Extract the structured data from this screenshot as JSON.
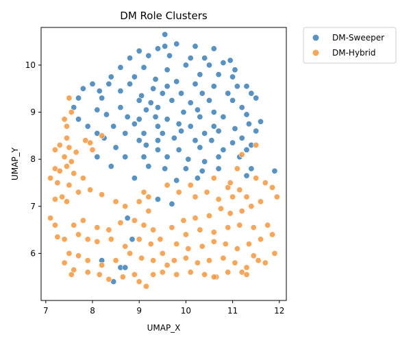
{
  "chart_data": {
    "type": "scatter",
    "title": "DM Role Clusters",
    "xlabel": "UMAP_X",
    "ylabel": "UMAP_Y",
    "xlim": [
      6.9,
      12.15
    ],
    "ylim": [
      5.0,
      10.8
    ],
    "x_ticks": [
      7,
      8,
      9,
      10,
      11,
      12
    ],
    "y_ticks": [
      6,
      7,
      8,
      9,
      10
    ],
    "grid": false,
    "legend": "outside-top-right",
    "series": [
      {
        "name": "DM-Sweeper",
        "color": "#3b7fb8",
        "points": [
          [
            9.55,
            10.65
          ],
          [
            9.55,
            10.4
          ],
          [
            9.8,
            10.45
          ],
          [
            9.0,
            10.3
          ],
          [
            9.4,
            10.35
          ],
          [
            10.2,
            10.4
          ],
          [
            10.6,
            10.35
          ],
          [
            8.8,
            10.15
          ],
          [
            9.2,
            10.2
          ],
          [
            9.65,
            10.2
          ],
          [
            10.1,
            10.15
          ],
          [
            10.4,
            10.15
          ],
          [
            10.95,
            10.1
          ],
          [
            8.6,
            9.95
          ],
          [
            9.1,
            9.95
          ],
          [
            9.6,
            9.9
          ],
          [
            10.0,
            10.0
          ],
          [
            10.5,
            10.0
          ],
          [
            10.8,
            10.05
          ],
          [
            11.05,
            9.9
          ],
          [
            8.4,
            9.75
          ],
          [
            8.9,
            9.75
          ],
          [
            9.35,
            9.7
          ],
          [
            9.8,
            9.65
          ],
          [
            10.3,
            9.8
          ],
          [
            10.7,
            9.8
          ],
          [
            11.0,
            9.75
          ],
          [
            8.0,
            9.6
          ],
          [
            8.35,
            9.6
          ],
          [
            8.8,
            9.6
          ],
          [
            9.3,
            9.5
          ],
          [
            9.6,
            9.55
          ],
          [
            10.2,
            9.6
          ],
          [
            10.6,
            9.55
          ],
          [
            11.1,
            9.55
          ],
          [
            11.3,
            9.55
          ],
          [
            7.8,
            9.5
          ],
          [
            8.15,
            9.45
          ],
          [
            8.6,
            9.45
          ],
          [
            9.05,
            9.35
          ],
          [
            9.5,
            9.4
          ],
          [
            9.9,
            9.4
          ],
          [
            10.35,
            9.4
          ],
          [
            10.9,
            9.4
          ],
          [
            11.4,
            9.4
          ],
          [
            7.7,
            9.3
          ],
          [
            8.2,
            9.3
          ],
          [
            9.0,
            9.25
          ],
          [
            9.25,
            9.2
          ],
          [
            9.7,
            9.25
          ],
          [
            10.1,
            9.2
          ],
          [
            10.5,
            9.25
          ],
          [
            11.0,
            9.25
          ],
          [
            11.5,
            9.3
          ],
          [
            7.6,
            9.1
          ],
          [
            8.1,
            9.05
          ],
          [
            8.6,
            9.1
          ],
          [
            9.15,
            9.05
          ],
          [
            9.4,
            9.1
          ],
          [
            9.95,
            9.0
          ],
          [
            10.25,
            9.05
          ],
          [
            10.6,
            9.0
          ],
          [
            11.2,
            9.1
          ],
          [
            7.7,
            8.85
          ],
          [
            8.3,
            8.95
          ],
          [
            8.75,
            8.9
          ],
          [
            9.0,
            8.85
          ],
          [
            9.35,
            8.9
          ],
          [
            9.6,
            8.85
          ],
          [
            10.3,
            8.9
          ],
          [
            10.8,
            8.9
          ],
          [
            11.3,
            8.95
          ],
          [
            11.6,
            8.8
          ],
          [
            7.9,
            8.7
          ],
          [
            8.45,
            8.7
          ],
          [
            8.9,
            8.75
          ],
          [
            9.4,
            8.7
          ],
          [
            9.85,
            8.75
          ],
          [
            10.1,
            8.7
          ],
          [
            10.6,
            8.7
          ],
          [
            11.05,
            8.65
          ],
          [
            11.35,
            8.75
          ],
          [
            8.1,
            8.55
          ],
          [
            8.7,
            8.55
          ],
          [
            9.1,
            8.55
          ],
          [
            9.5,
            8.55
          ],
          [
            9.9,
            8.6
          ],
          [
            10.4,
            8.55
          ],
          [
            10.7,
            8.6
          ],
          [
            11.2,
            8.45
          ],
          [
            11.5,
            8.6
          ],
          [
            8.25,
            8.45
          ],
          [
            9.0,
            8.4
          ],
          [
            9.4,
            8.4
          ],
          [
            9.75,
            8.45
          ],
          [
            10.2,
            8.4
          ],
          [
            10.55,
            8.4
          ],
          [
            11.0,
            8.35
          ],
          [
            11.4,
            8.3
          ],
          [
            8.5,
            8.25
          ],
          [
            9.15,
            8.3
          ],
          [
            9.4,
            8.2
          ],
          [
            9.85,
            8.2
          ],
          [
            10.3,
            8.25
          ],
          [
            10.8,
            8.2
          ],
          [
            11.3,
            8.2
          ],
          [
            8.1,
            8.05
          ],
          [
            8.7,
            8.05
          ],
          [
            9.1,
            8.05
          ],
          [
            9.6,
            8.05
          ],
          [
            10.05,
            8.0
          ],
          [
            10.4,
            7.95
          ],
          [
            10.7,
            8.05
          ],
          [
            11.15,
            8.05
          ],
          [
            8.4,
            7.85
          ],
          [
            9.2,
            7.85
          ],
          [
            9.55,
            7.8
          ],
          [
            10.0,
            7.8
          ],
          [
            10.35,
            7.75
          ],
          [
            10.7,
            7.8
          ],
          [
            11.4,
            7.8
          ],
          [
            11.9,
            7.75
          ],
          [
            8.9,
            7.6
          ],
          [
            9.8,
            7.55
          ],
          [
            10.25,
            7.6
          ],
          [
            11.3,
            7.65
          ],
          [
            9.4,
            7.15
          ],
          [
            9.7,
            7.05
          ],
          [
            8.75,
            6.75
          ],
          [
            8.85,
            6.3
          ],
          [
            8.2,
            5.85
          ],
          [
            8.6,
            5.7
          ],
          [
            8.45,
            5.4
          ],
          [
            8.7,
            5.7
          ]
        ]
      },
      {
        "name": "DM-Hybrid",
        "color": "#f7963c",
        "points": [
          [
            7.5,
            9.3
          ],
          [
            7.55,
            9.0
          ],
          [
            7.4,
            8.85
          ],
          [
            7.45,
            8.7
          ],
          [
            7.45,
            8.45
          ],
          [
            7.3,
            8.3
          ],
          [
            7.5,
            8.25
          ],
          [
            7.2,
            8.2
          ],
          [
            7.65,
            8.15
          ],
          [
            7.85,
            8.4
          ],
          [
            7.4,
            8.05
          ],
          [
            7.55,
            7.95
          ],
          [
            7.2,
            7.8
          ],
          [
            7.45,
            7.85
          ],
          [
            7.3,
            7.75
          ],
          [
            7.6,
            7.7
          ],
          [
            7.8,
            7.6
          ],
          [
            7.1,
            7.6
          ],
          [
            7.25,
            7.5
          ],
          [
            7.5,
            7.45
          ],
          [
            7.35,
            7.2
          ],
          [
            7.2,
            7.15
          ],
          [
            7.45,
            7.1
          ],
          [
            7.7,
            7.3
          ],
          [
            7.95,
            7.35
          ],
          [
            8.2,
            7.25
          ],
          [
            8.5,
            7.1
          ],
          [
            8.7,
            7.0
          ],
          [
            9.0,
            7.1
          ],
          [
            9.2,
            7.2
          ],
          [
            7.1,
            6.75
          ],
          [
            7.2,
            6.6
          ],
          [
            7.6,
            6.6
          ],
          [
            7.8,
            6.7
          ],
          [
            8.1,
            6.55
          ],
          [
            8.35,
            6.5
          ],
          [
            8.6,
            6.65
          ],
          [
            8.9,
            6.7
          ],
          [
            9.1,
            6.6
          ],
          [
            9.3,
            6.5
          ],
          [
            7.25,
            6.35
          ],
          [
            7.4,
            6.3
          ],
          [
            7.7,
            6.4
          ],
          [
            7.9,
            6.3
          ],
          [
            8.1,
            6.25
          ],
          [
            8.4,
            6.3
          ],
          [
            8.7,
            6.15
          ],
          [
            9.0,
            6.3
          ],
          [
            9.25,
            6.2
          ],
          [
            9.45,
            6.3
          ],
          [
            7.5,
            6.0
          ],
          [
            7.7,
            5.95
          ],
          [
            7.9,
            5.85
          ],
          [
            8.2,
            5.75
          ],
          [
            8.5,
            5.85
          ],
          [
            8.8,
            6.0
          ],
          [
            9.05,
            5.9
          ],
          [
            9.3,
            5.85
          ],
          [
            9.5,
            6.0
          ],
          [
            9.6,
            5.75
          ],
          [
            7.4,
            5.8
          ],
          [
            7.6,
            5.65
          ],
          [
            7.55,
            5.55
          ],
          [
            7.9,
            5.6
          ],
          [
            8.15,
            5.55
          ],
          [
            8.35,
            5.45
          ],
          [
            8.65,
            5.5
          ],
          [
            8.9,
            5.55
          ],
          [
            9.0,
            5.4
          ],
          [
            9.15,
            5.3
          ],
          [
            9.6,
            7.45
          ],
          [
            9.85,
            7.3
          ],
          [
            10.1,
            7.45
          ],
          [
            10.2,
            7.2
          ],
          [
            10.45,
            7.3
          ],
          [
            10.7,
            7.15
          ],
          [
            10.9,
            7.4
          ],
          [
            11.0,
            7.2
          ],
          [
            11.15,
            7.35
          ],
          [
            11.3,
            7.2
          ],
          [
            11.5,
            7.6
          ],
          [
            11.7,
            7.5
          ],
          [
            11.85,
            7.4
          ],
          [
            11.95,
            7.2
          ],
          [
            11.6,
            7.1
          ],
          [
            11.4,
            7.0
          ],
          [
            11.2,
            6.9
          ],
          [
            10.95,
            6.85
          ],
          [
            10.75,
            6.95
          ],
          [
            10.5,
            6.8
          ],
          [
            10.2,
            6.75
          ],
          [
            9.95,
            6.7
          ],
          [
            9.7,
            6.55
          ],
          [
            10.0,
            6.4
          ],
          [
            10.3,
            6.5
          ],
          [
            10.6,
            6.45
          ],
          [
            10.9,
            6.55
          ],
          [
            11.15,
            6.6
          ],
          [
            11.45,
            6.55
          ],
          [
            11.75,
            6.6
          ],
          [
            9.8,
            6.2
          ],
          [
            10.05,
            6.1
          ],
          [
            10.35,
            6.15
          ],
          [
            10.6,
            6.25
          ],
          [
            10.85,
            6.2
          ],
          [
            11.1,
            6.1
          ],
          [
            11.35,
            6.2
          ],
          [
            11.6,
            6.3
          ],
          [
            11.85,
            6.4
          ],
          [
            11.9,
            6.0
          ],
          [
            9.75,
            5.85
          ],
          [
            10.0,
            5.9
          ],
          [
            10.25,
            5.8
          ],
          [
            10.5,
            5.85
          ],
          [
            10.8,
            5.9
          ],
          [
            11.05,
            5.8
          ],
          [
            11.3,
            5.7
          ],
          [
            11.55,
            5.85
          ],
          [
            11.45,
            5.95
          ],
          [
            11.7,
            5.8
          ],
          [
            9.8,
            5.55
          ],
          [
            10.1,
            5.6
          ],
          [
            10.4,
            5.55
          ],
          [
            10.65,
            5.5
          ],
          [
            10.9,
            5.6
          ],
          [
            11.2,
            5.6
          ],
          [
            11.3,
            5.55
          ],
          [
            10.6,
            5.5
          ],
          [
            9.5,
            5.6
          ],
          [
            9.3,
            5.55
          ],
          [
            11.2,
            8.1
          ],
          [
            11.5,
            8.3
          ],
          [
            11.1,
            7.8
          ],
          [
            10.95,
            7.5
          ],
          [
            10.6,
            7.6
          ],
          [
            8.2,
            8.5
          ],
          [
            8.0,
            8.2
          ],
          [
            7.95,
            8.35
          ],
          [
            9.1,
            7.3
          ],
          [
            9.2,
            6.9
          ]
        ]
      }
    ]
  }
}
